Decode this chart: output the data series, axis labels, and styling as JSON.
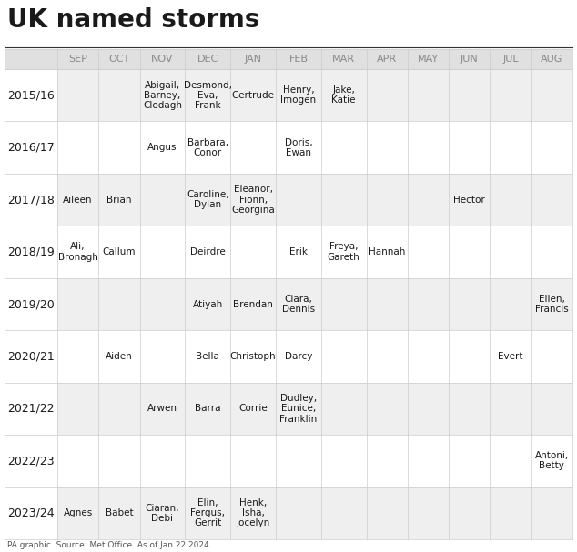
{
  "title": "UK named storms",
  "source": "PA graphic. Source: Met Office. As of Jan 22 2024",
  "months": [
    "SEP",
    "OCT",
    "NOV",
    "DEC",
    "JAN",
    "FEB",
    "MAR",
    "APR",
    "MAY",
    "JUN",
    "JUL",
    "AUG"
  ],
  "rows": [
    {
      "season": "2015/16",
      "SEP": "",
      "OCT": "",
      "NOV": "Abigail,\nBarney,\nClodagh",
      "DEC": "Desmond,\nEva,\nFrank",
      "JAN": "Gertrude",
      "FEB": "Henry,\nImogen",
      "MAR": "Jake,\nKatie",
      "APR": "",
      "MAY": "",
      "JUN": "",
      "JUL": "",
      "AUG": ""
    },
    {
      "season": "2016/17",
      "SEP": "",
      "OCT": "",
      "NOV": "Angus",
      "DEC": "Barbara,\nConor",
      "JAN": "",
      "FEB": "Doris,\nEwan",
      "MAR": "",
      "APR": "",
      "MAY": "",
      "JUN": "",
      "JUL": "",
      "AUG": ""
    },
    {
      "season": "2017/18",
      "SEP": "Aileen",
      "OCT": "Brian",
      "NOV": "",
      "DEC": "Caroline,\nDylan",
      "JAN": "Eleanor,\nFionn,\nGeorgina",
      "FEB": "",
      "MAR": "",
      "APR": "",
      "MAY": "",
      "JUN": "Hector",
      "JUL": "",
      "AUG": ""
    },
    {
      "season": "2018/19",
      "SEP": "Ali,\nBronagh",
      "OCT": "Callum",
      "NOV": "",
      "DEC": "Deirdre",
      "JAN": "",
      "FEB": "Erik",
      "MAR": "Freya,\nGareth",
      "APR": "Hannah",
      "MAY": "",
      "JUN": "",
      "JUL": "",
      "AUG": ""
    },
    {
      "season": "2019/20",
      "SEP": "",
      "OCT": "",
      "NOV": "",
      "DEC": "Atiyah",
      "JAN": "Brendan",
      "FEB": "Ciara,\nDennis",
      "MAR": "",
      "APR": "",
      "MAY": "",
      "JUN": "",
      "JUL": "",
      "AUG": "Ellen,\nFrancis"
    },
    {
      "season": "2020/21",
      "SEP": "",
      "OCT": "Aiden",
      "NOV": "",
      "DEC": "Bella",
      "JAN": "Christoph",
      "FEB": "Darcy",
      "MAR": "",
      "APR": "",
      "MAY": "",
      "JUN": "",
      "JUL": "Evert",
      "AUG": ""
    },
    {
      "season": "2021/22",
      "SEP": "",
      "OCT": "",
      "NOV": "Arwen",
      "DEC": "Barra",
      "JAN": "Corrie",
      "FEB": "Dudley,\nEunice,\nFranklin",
      "MAR": "",
      "APR": "",
      "MAY": "",
      "JUN": "",
      "JUL": "",
      "AUG": ""
    },
    {
      "season": "2022/23",
      "SEP": "",
      "OCT": "",
      "NOV": "",
      "DEC": "",
      "JAN": "",
      "FEB": "",
      "MAR": "",
      "APR": "",
      "MAY": "",
      "JUN": "",
      "JUL": "",
      "AUG": "Antoni,\nBetty"
    },
    {
      "season": "2023/24",
      "SEP": "Agnes",
      "OCT": "Babet",
      "NOV": "Ciaran,\nDebi",
      "DEC": "Elin,\nFergus,\nGerrit",
      "JAN": "Henk,\nIsha,\nJocelyn",
      "FEB": "",
      "MAR": "",
      "APR": "",
      "MAY": "",
      "JUN": "",
      "JUL": "",
      "AUG": ""
    }
  ],
  "header_bg": "#e0e0e0",
  "row_bg_odd": "#efefef",
  "row_bg_even": "#ffffff",
  "text_color": "#1a1a1a",
  "header_text_color": "#888888",
  "season_text_color": "#1a1a1a",
  "border_color": "#cccccc",
  "title_fontsize": 20,
  "header_fontsize": 8,
  "cell_fontsize": 7.5,
  "season_fontsize": 9,
  "source_fontsize": 6.5
}
